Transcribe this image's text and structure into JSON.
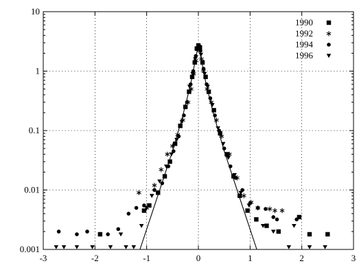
{
  "chart_data": {
    "type": "scatter",
    "title": "",
    "xlabel": "",
    "ylabel": "",
    "x_range": [
      -3,
      3
    ],
    "y_range": [
      0.001,
      10
    ],
    "y_scale": "log",
    "grid": true,
    "legend_position": "top-right",
    "x_ticks": [
      -3,
      -2,
      -1,
      0,
      1,
      2,
      3
    ],
    "x_tick_labels": [
      "-3",
      "-2",
      "-1",
      "0",
      "1",
      "2",
      "3"
    ],
    "y_ticks": [
      0.001,
      0.01,
      0.1,
      1,
      10
    ],
    "y_tick_labels": [
      "0.001",
      "0.01",
      "0.1",
      "1",
      "10"
    ],
    "series": [
      {
        "name": "1990",
        "marker": "square",
        "points": [
          [
            -1.9,
            0.0018
          ],
          [
            -1.05,
            0.0045
          ],
          [
            -0.95,
            0.0055
          ],
          [
            -0.78,
            0.009
          ],
          [
            -0.65,
            0.017
          ],
          [
            -0.55,
            0.03
          ],
          [
            -0.45,
            0.06
          ],
          [
            -0.35,
            0.12
          ],
          [
            -0.25,
            0.25
          ],
          [
            -0.18,
            0.45
          ],
          [
            -0.12,
            0.8
          ],
          [
            -0.07,
            1.4
          ],
          [
            -0.03,
            2.4
          ],
          [
            0.0,
            2.7
          ],
          [
            0.03,
            2.5
          ],
          [
            0.08,
            1.4
          ],
          [
            0.14,
            0.8
          ],
          [
            0.2,
            0.45
          ],
          [
            0.3,
            0.22
          ],
          [
            0.42,
            0.09
          ],
          [
            0.55,
            0.04
          ],
          [
            0.68,
            0.017
          ],
          [
            0.8,
            0.008
          ],
          [
            0.95,
            0.0045
          ],
          [
            1.12,
            0.0032
          ],
          [
            1.32,
            0.0025
          ],
          [
            1.55,
            0.002
          ],
          [
            1.95,
            0.0035
          ],
          [
            2.15,
            0.0018
          ],
          [
            2.5,
            0.0018
          ]
        ]
      },
      {
        "name": "1992",
        "marker": "star",
        "points": [
          [
            -1.15,
            0.009
          ],
          [
            -1.0,
            0.005
          ],
          [
            -0.85,
            0.012
          ],
          [
            -0.72,
            0.022
          ],
          [
            -0.6,
            0.04
          ],
          [
            -0.5,
            0.055
          ],
          [
            -0.4,
            0.085
          ],
          [
            -0.3,
            0.15
          ],
          [
            -0.2,
            0.3
          ],
          [
            -0.14,
            0.5
          ],
          [
            -0.09,
            0.9
          ],
          [
            -0.05,
            1.5
          ],
          [
            -0.01,
            2.3
          ],
          [
            0.02,
            2.4
          ],
          [
            0.06,
            1.6
          ],
          [
            0.1,
            1.0
          ],
          [
            0.17,
            0.5
          ],
          [
            0.25,
            0.3
          ],
          [
            0.35,
            0.15
          ],
          [
            0.45,
            0.08
          ],
          [
            0.6,
            0.04
          ],
          [
            0.75,
            0.016
          ],
          [
            0.88,
            0.008
          ],
          [
            1.02,
            0.0062
          ],
          [
            1.15,
            0.005
          ],
          [
            1.38,
            0.0048
          ],
          [
            1.48,
            0.0045
          ],
          [
            1.62,
            0.0045
          ]
        ]
      },
      {
        "name": "1994",
        "marker": "circle",
        "points": [
          [
            -2.7,
            0.002
          ],
          [
            -2.35,
            0.0018
          ],
          [
            -2.15,
            0.002
          ],
          [
            -1.75,
            0.0018
          ],
          [
            -1.55,
            0.0022
          ],
          [
            -1.35,
            0.004
          ],
          [
            -1.2,
            0.005
          ],
          [
            -1.05,
            0.0055
          ],
          [
            -0.85,
            0.01
          ],
          [
            -0.7,
            0.013
          ],
          [
            -0.58,
            0.025
          ],
          [
            -0.48,
            0.045
          ],
          [
            -0.38,
            0.08
          ],
          [
            -0.28,
            0.18
          ],
          [
            -0.22,
            0.3
          ],
          [
            -0.15,
            0.6
          ],
          [
            -0.1,
            1.0
          ],
          [
            -0.05,
            1.8
          ],
          [
            0.0,
            2.5
          ],
          [
            0.04,
            2.2
          ],
          [
            0.1,
            1.1
          ],
          [
            0.16,
            0.6
          ],
          [
            0.23,
            0.35
          ],
          [
            0.32,
            0.18
          ],
          [
            0.4,
            0.1
          ],
          [
            0.5,
            0.05
          ],
          [
            0.62,
            0.025
          ],
          [
            0.72,
            0.016
          ],
          [
            0.85,
            0.01
          ],
          [
            1.0,
            0.006
          ],
          [
            1.15,
            0.005
          ],
          [
            1.3,
            0.0048
          ],
          [
            1.45,
            0.0035
          ],
          [
            1.52,
            0.0032
          ],
          [
            1.9,
            0.0032
          ]
        ]
      },
      {
        "name": "1996",
        "marker": "triangle-down",
        "points": [
          [
            -2.75,
            0.0011
          ],
          [
            -2.6,
            0.0011
          ],
          [
            -2.35,
            0.0011
          ],
          [
            -2.05,
            0.0011
          ],
          [
            -1.7,
            0.0011
          ],
          [
            -1.5,
            0.0018
          ],
          [
            -1.4,
            0.0011
          ],
          [
            -1.25,
            0.0011
          ],
          [
            -1.1,
            0.0025
          ],
          [
            -1.0,
            0.005
          ],
          [
            -0.9,
            0.008
          ],
          [
            -0.75,
            0.014
          ],
          [
            -0.62,
            0.025
          ],
          [
            -0.52,
            0.04
          ],
          [
            -0.42,
            0.07
          ],
          [
            -0.32,
            0.14
          ],
          [
            -0.25,
            0.25
          ],
          [
            -0.17,
            0.55
          ],
          [
            -0.11,
            0.9
          ],
          [
            -0.06,
            1.6
          ],
          [
            0.01,
            2.6
          ],
          [
            0.05,
            1.9
          ],
          [
            0.12,
            0.9
          ],
          [
            0.18,
            0.55
          ],
          [
            0.27,
            0.27
          ],
          [
            0.38,
            0.11
          ],
          [
            0.48,
            0.06
          ],
          [
            0.58,
            0.035
          ],
          [
            0.7,
            0.018
          ],
          [
            0.82,
            0.009
          ],
          [
            0.98,
            0.0055
          ],
          [
            1.25,
            0.0025
          ],
          [
            1.45,
            0.002
          ],
          [
            1.75,
            0.0011
          ],
          [
            1.85,
            0.0025
          ],
          [
            2.15,
            0.0011
          ],
          [
            2.45,
            0.0011
          ]
        ]
      }
    ],
    "fit_line": {
      "type": "line",
      "points": [
        [
          -1.13,
          0.001
        ],
        [
          -0.8,
          0.0073
        ],
        [
          -0.5,
          0.045
        ],
        [
          -0.3,
          0.18
        ],
        [
          -0.15,
          0.6
        ],
        [
          0.0,
          2.8
        ],
        [
          0.15,
          0.6
        ],
        [
          0.3,
          0.18
        ],
        [
          0.5,
          0.045
        ],
        [
          0.8,
          0.0073
        ],
        [
          1.13,
          0.001
        ]
      ]
    }
  }
}
